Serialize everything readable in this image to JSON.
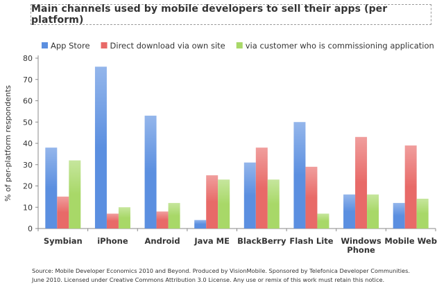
{
  "chart_data": {
    "type": "bar",
    "title": "Main channels used by mobile developers to sell their apps (per platform)",
    "xlabel": "",
    "ylabel": "% of per-platform respondents",
    "ylim": [
      0,
      80
    ],
    "yticks": [
      0,
      10,
      20,
      30,
      40,
      50,
      60,
      70,
      80
    ],
    "grid": false,
    "legend_position": "top",
    "categories": [
      "Symbian",
      "iPhone",
      "Android",
      "Java ME",
      "BlackBerry",
      "Flash Lite",
      "Windows Phone",
      "Mobile Web"
    ],
    "series": [
      {
        "name": "App Store",
        "color": "#5b8fe0",
        "values": [
          38,
          76,
          53,
          4,
          31,
          50,
          16,
          12
        ]
      },
      {
        "name": "Direct download via own site",
        "color": "#e86a68",
        "values": [
          15,
          7,
          8,
          25,
          38,
          29,
          43,
          39
        ]
      },
      {
        "name": "via customer who is commissioning application",
        "color": "#a8d868",
        "values": [
          32,
          10,
          12,
          23,
          23,
          7,
          16,
          14
        ]
      }
    ]
  },
  "footnote": {
    "line1": "Source: Mobile Developer Economics 2010 and Beyond. Produced by VisionMobile. Sponsored by Telefonica Developer Communities.",
    "line2": "June 2010. Licensed under Creative Commons Attribution 3.0 License. Any use or remix of this work must retain this notice."
  }
}
